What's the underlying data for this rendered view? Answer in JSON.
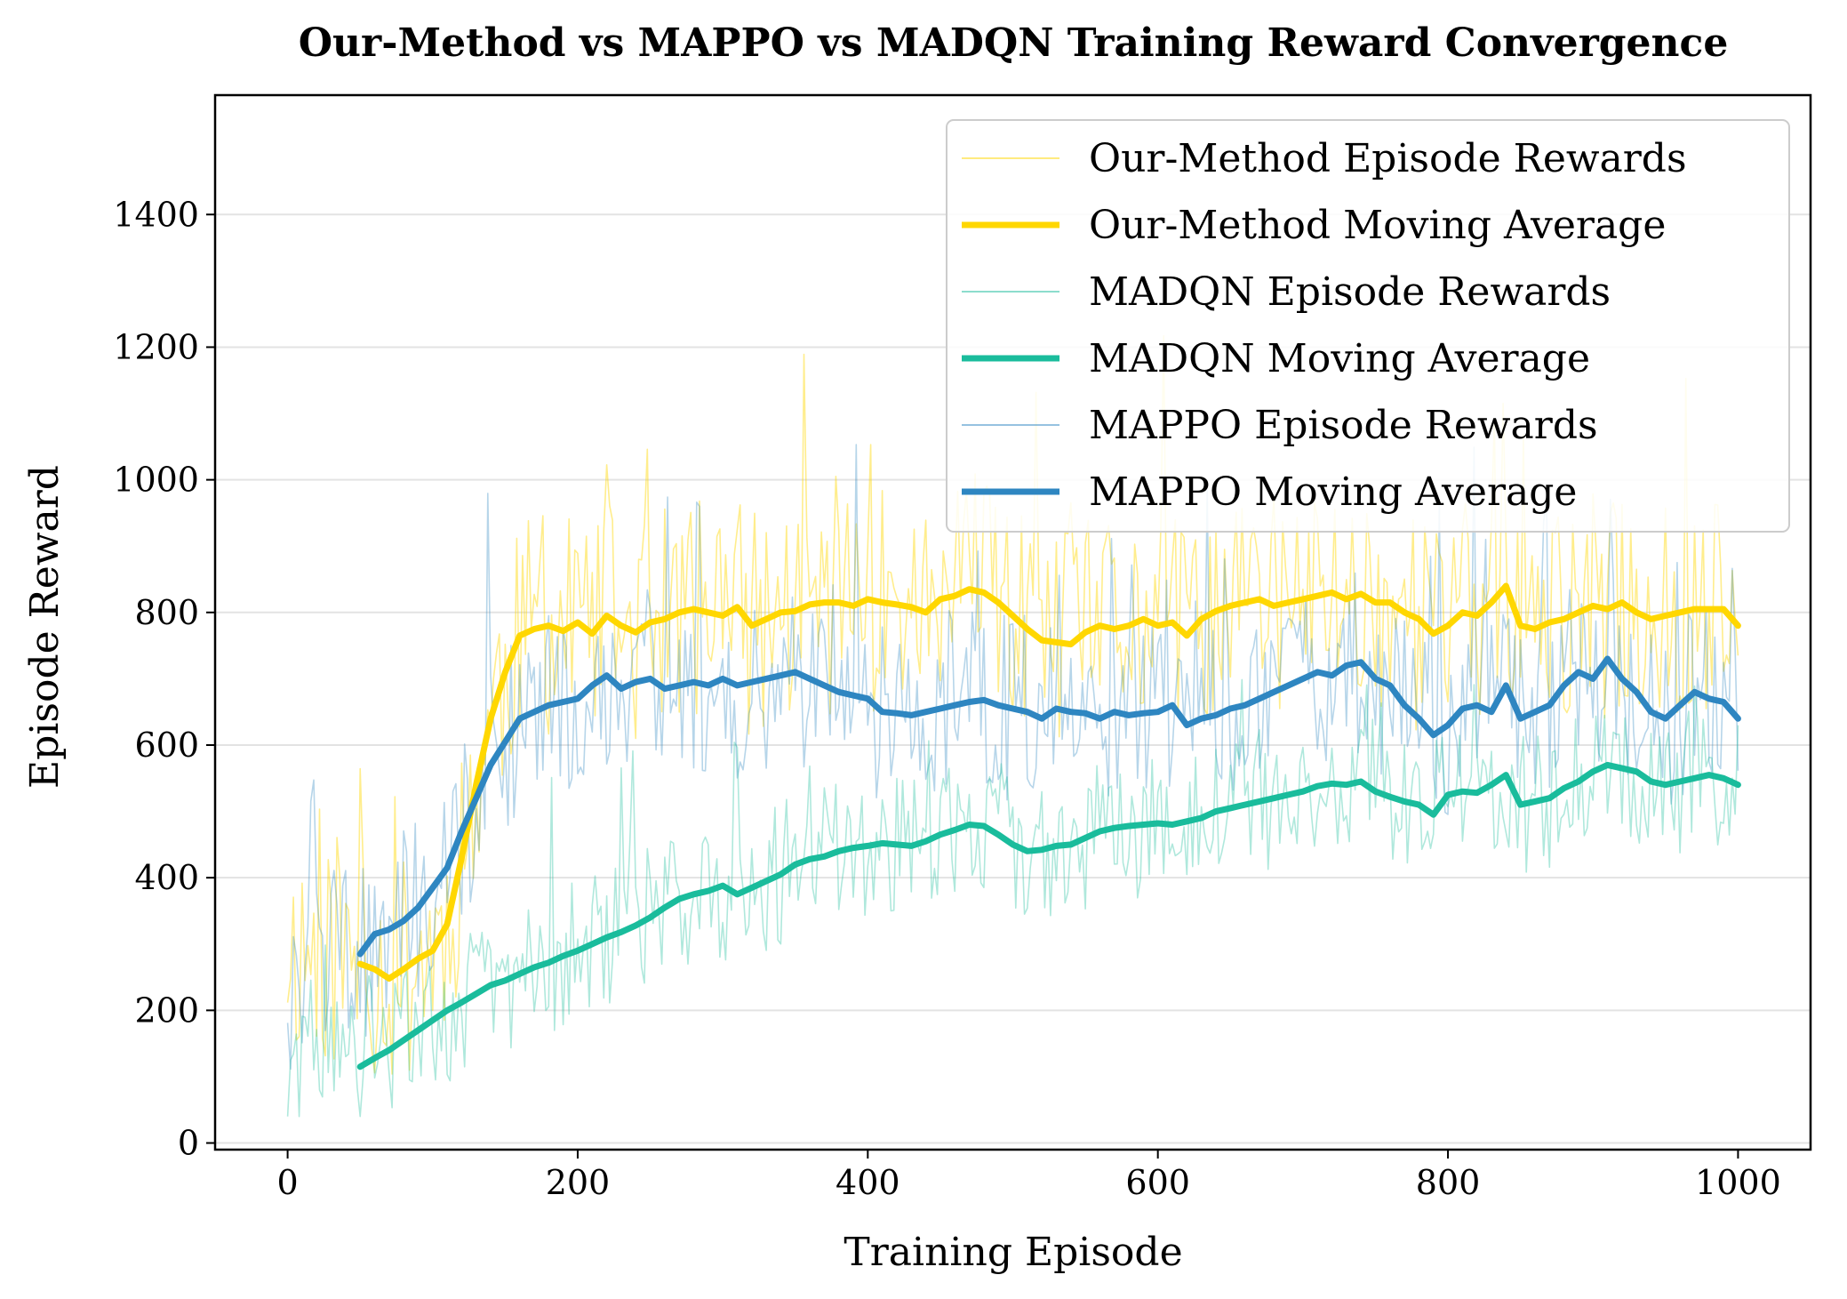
{
  "chart_data": {
    "type": "line",
    "title": "Our-Method vs MAPPO vs MADQN Training Reward Convergence",
    "xlabel": "Training Episode",
    "ylabel": "Episode Reward",
    "xlim": [
      -50,
      1050
    ],
    "ylim": [
      -10,
      1580
    ],
    "x_ticks": [
      0,
      200,
      400,
      600,
      800,
      1000
    ],
    "y_ticks": [
      0,
      200,
      400,
      600,
      800,
      1000,
      1200,
      1400
    ],
    "x_tick_labels": [
      "0",
      "200",
      "400",
      "600",
      "800",
      "1000"
    ],
    "y_tick_labels": [
      "0",
      "200",
      "400",
      "600",
      "800",
      "1000",
      "1200",
      "1400"
    ],
    "grid": "horizontal",
    "legend_position": "top-right",
    "colors": {
      "our_method": "#FFD700",
      "madqn": "#1ABC9C",
      "mappo": "#2E86C1"
    },
    "legend": [
      {
        "label": "Our-Method Episode Rewards",
        "series": "our_method",
        "style": "raw"
      },
      {
        "label": "Our-Method Moving Average",
        "series": "our_method",
        "style": "avg"
      },
      {
        "label": "MADQN Episode Rewards",
        "series": "madqn",
        "style": "raw"
      },
      {
        "label": "MADQN Moving Average",
        "series": "madqn",
        "style": "avg"
      },
      {
        "label": "MAPPO Episode Rewards",
        "series": "mappo",
        "style": "raw"
      },
      {
        "label": "MAPPO Moving Average",
        "series": "mappo",
        "style": "avg"
      }
    ],
    "series": [
      {
        "key": "our_method",
        "name": "Our-Method Moving Average",
        "x": [
          50,
          60,
          70,
          80,
          90,
          100,
          110,
          120,
          130,
          140,
          150,
          160,
          170,
          180,
          190,
          200,
          210,
          220,
          230,
          240,
          250,
          260,
          270,
          280,
          290,
          300,
          310,
          320,
          330,
          340,
          350,
          360,
          370,
          380,
          390,
          400,
          410,
          420,
          430,
          440,
          450,
          460,
          470,
          480,
          490,
          500,
          510,
          520,
          530,
          540,
          550,
          560,
          570,
          580,
          590,
          600,
          610,
          620,
          630,
          640,
          650,
          660,
          670,
          680,
          690,
          700,
          710,
          720,
          730,
          740,
          750,
          760,
          770,
          780,
          790,
          800,
          810,
          820,
          830,
          840,
          850,
          860,
          870,
          880,
          890,
          900,
          910,
          920,
          930,
          940,
          950,
          960,
          970,
          980,
          990,
          1000
        ],
        "values": [
          270,
          262,
          248,
          262,
          278,
          290,
          330,
          430,
          540,
          640,
          710,
          765,
          775,
          780,
          772,
          785,
          768,
          795,
          780,
          770,
          785,
          790,
          800,
          805,
          800,
          795,
          808,
          780,
          790,
          800,
          802,
          812,
          815,
          815,
          810,
          820,
          815,
          812,
          808,
          800,
          820,
          825,
          835,
          830,
          815,
          795,
          775,
          758,
          755,
          752,
          770,
          780,
          775,
          780,
          790,
          780,
          785,
          765,
          790,
          802,
          810,
          815,
          820,
          810,
          815,
          820,
          825,
          830,
          820,
          828,
          815,
          815,
          800,
          790,
          768,
          780,
          800,
          795,
          815,
          840,
          780,
          775,
          785,
          790,
          800,
          810,
          805,
          815,
          800,
          790,
          795,
          800,
          805,
          805,
          805,
          780
        ]
      },
      {
        "key": "mappo",
        "name": "MAPPO Moving Average",
        "x": [
          50,
          60,
          70,
          80,
          90,
          100,
          110,
          120,
          130,
          140,
          150,
          160,
          170,
          180,
          190,
          200,
          210,
          220,
          230,
          240,
          250,
          260,
          270,
          280,
          290,
          300,
          310,
          320,
          330,
          340,
          350,
          360,
          370,
          380,
          390,
          400,
          410,
          420,
          430,
          440,
          450,
          460,
          470,
          480,
          490,
          500,
          510,
          520,
          530,
          540,
          550,
          560,
          570,
          580,
          590,
          600,
          610,
          620,
          630,
          640,
          650,
          660,
          670,
          680,
          690,
          700,
          710,
          720,
          730,
          740,
          750,
          760,
          770,
          780,
          790,
          800,
          810,
          820,
          830,
          840,
          850,
          860,
          870,
          880,
          890,
          900,
          910,
          920,
          930,
          940,
          950,
          960,
          970,
          980,
          990,
          1000
        ],
        "values": [
          285,
          315,
          322,
          335,
          355,
          385,
          415,
          470,
          520,
          570,
          605,
          640,
          650,
          660,
          665,
          670,
          690,
          705,
          685,
          695,
          700,
          685,
          690,
          695,
          690,
          700,
          690,
          695,
          700,
          705,
          710,
          700,
          690,
          680,
          675,
          670,
          650,
          648,
          645,
          650,
          655,
          660,
          665,
          668,
          660,
          655,
          650,
          640,
          655,
          650,
          648,
          640,
          650,
          645,
          648,
          650,
          660,
          630,
          640,
          645,
          655,
          660,
          670,
          680,
          690,
          700,
          710,
          705,
          720,
          725,
          700,
          690,
          660,
          640,
          615,
          630,
          655,
          660,
          650,
          690,
          640,
          650,
          660,
          690,
          710,
          700,
          730,
          700,
          680,
          650,
          640,
          660,
          680,
          670,
          665,
          640
        ]
      },
      {
        "key": "madqn",
        "name": "MADQN Moving Average",
        "x": [
          50,
          60,
          70,
          80,
          90,
          100,
          110,
          120,
          130,
          140,
          150,
          160,
          170,
          180,
          190,
          200,
          210,
          220,
          230,
          240,
          250,
          260,
          270,
          280,
          290,
          300,
          310,
          320,
          330,
          340,
          350,
          360,
          370,
          380,
          390,
          400,
          410,
          420,
          430,
          440,
          450,
          460,
          470,
          480,
          490,
          500,
          510,
          520,
          530,
          540,
          550,
          560,
          570,
          580,
          590,
          600,
          610,
          620,
          630,
          640,
          650,
          660,
          670,
          680,
          690,
          700,
          710,
          720,
          730,
          740,
          750,
          760,
          770,
          780,
          790,
          800,
          810,
          820,
          830,
          840,
          850,
          860,
          870,
          880,
          890,
          900,
          910,
          920,
          930,
          940,
          950,
          960,
          970,
          980,
          990,
          1000
        ],
        "values": [
          115,
          128,
          140,
          155,
          170,
          185,
          200,
          212,
          225,
          238,
          245,
          255,
          265,
          272,
          282,
          290,
          300,
          310,
          318,
          328,
          340,
          355,
          368,
          375,
          380,
          388,
          375,
          385,
          395,
          405,
          420,
          428,
          432,
          440,
          445,
          448,
          452,
          450,
          448,
          455,
          465,
          472,
          480,
          478,
          465,
          450,
          440,
          442,
          448,
          450,
          460,
          470,
          475,
          478,
          480,
          482,
          480,
          485,
          490,
          500,
          505,
          510,
          515,
          520,
          525,
          530,
          538,
          542,
          540,
          545,
          530,
          522,
          515,
          510,
          495,
          525,
          530,
          528,
          540,
          555,
          510,
          515,
          520,
          535,
          545,
          560,
          570,
          565,
          560,
          545,
          540,
          545,
          550,
          555,
          550,
          540
        ]
      }
    ]
  }
}
